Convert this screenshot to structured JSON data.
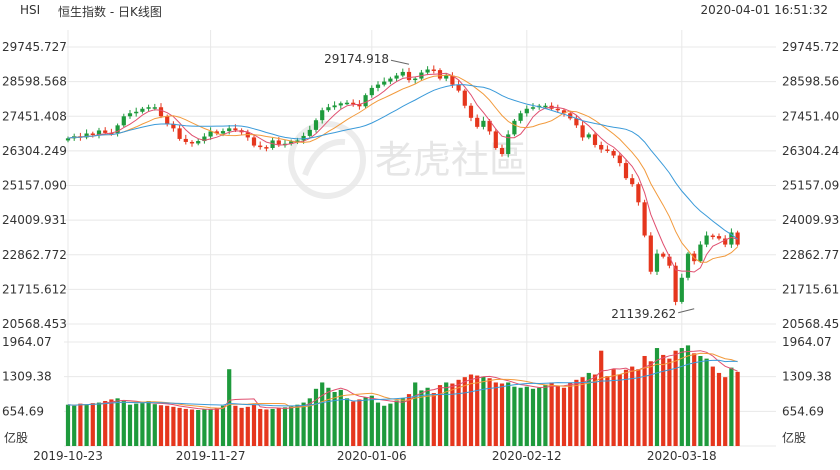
{
  "header": {
    "symbol": "HSI",
    "chart_title": "恒生指数 - 日K线图",
    "datetime": "2020-04-01 16:51:32"
  },
  "watermark": {
    "text": "老虎社區",
    "icon": "tiger-logo-icon"
  },
  "colors": {
    "up": "#1e9a3c",
    "down": "#e5361d",
    "ma5": "#e05070",
    "ma10": "#f29a3c",
    "ma20": "#3a9ad9",
    "grid": "#e8e8e8",
    "text": "#333333"
  },
  "chart_data": [
    {
      "type": "candlestick",
      "title": "恒生指数 - 日K线图",
      "price_ticks": [
        "29745.727",
        "28598.568",
        "27451.408",
        "26304.249",
        "25157.090",
        "24009.931",
        "22862.772",
        "21715.612",
        "20568.453"
      ],
      "ylim": [
        20568.453,
        29745.727
      ],
      "x_labels": [
        {
          "label": "2019-10-23",
          "index": 0
        },
        {
          "label": "2019-11-27",
          "index": 23
        },
        {
          "label": "2020-01-06",
          "index": 49
        },
        {
          "label": "2020-02-12",
          "index": 74
        },
        {
          "label": "2020-03-18",
          "index": 99
        }
      ],
      "annotations": [
        {
          "text": "29174.918",
          "index": 55,
          "value": 29174.918,
          "type": "high"
        },
        {
          "text": "21139.262",
          "index": 101,
          "value": 21139.262,
          "type": "low"
        }
      ],
      "series_colors": {
        "ma5": "#e05070",
        "ma10": "#f29a3c",
        "ma20": "#3a9ad9"
      },
      "close": [
        26720,
        26790,
        26750,
        26880,
        26830,
        26980,
        26900,
        26890,
        27150,
        27450,
        27550,
        27600,
        27700,
        27750,
        27750,
        27450,
        27200,
        27050,
        26700,
        26600,
        26550,
        26630,
        26780,
        26950,
        26880,
        26960,
        27050,
        26990,
        26920,
        26750,
        26480,
        26430,
        26400,
        26650,
        26520,
        26540,
        26620,
        26650,
        26800,
        27000,
        27320,
        27650,
        27750,
        27810,
        27880,
        27900,
        27850,
        27780,
        28150,
        28390,
        28500,
        28600,
        28700,
        28800,
        28920,
        28650,
        28700,
        28900,
        29000,
        28980,
        28700,
        28800,
        28500,
        28300,
        27800,
        27400,
        27100,
        27300,
        26950,
        26400,
        26200,
        26850,
        27300,
        27550,
        27700,
        27750,
        27800,
        27800,
        27700,
        27650,
        27550,
        27380,
        27150,
        26750,
        26850,
        26500,
        26350,
        26300,
        26150,
        25900,
        25400,
        25200,
        24600,
        23500,
        22300,
        22900,
        22800,
        22500,
        21300,
        22100,
        22900,
        22650,
        23200,
        23500,
        23480,
        23400,
        23200,
        23600,
        23200
      ],
      "open": [
        26650,
        26720,
        26790,
        26750,
        26880,
        26830,
        26980,
        26900,
        26890,
        27150,
        27450,
        27550,
        27600,
        27700,
        27750,
        27750,
        27450,
        27200,
        27050,
        26700,
        26600,
        26550,
        26630,
        26780,
        26950,
        26880,
        26960,
        27050,
        26990,
        26920,
        26750,
        26480,
        26430,
        26400,
        26650,
        26520,
        26540,
        26620,
        26650,
        26800,
        27000,
        27320,
        27650,
        27750,
        27810,
        27880,
        27900,
        27850,
        27780,
        28150,
        28390,
        28500,
        28600,
        28700,
        28800,
        28920,
        28650,
        28700,
        28900,
        29000,
        28980,
        28700,
        28800,
        28500,
        28300,
        27800,
        27400,
        27100,
        27300,
        26950,
        26400,
        26200,
        26850,
        27300,
        27550,
        27700,
        27750,
        27800,
        27800,
        27700,
        27650,
        27550,
        27380,
        27150,
        26750,
        26850,
        26500,
        26350,
        26300,
        26150,
        25900,
        25400,
        25200,
        24600,
        23500,
        22300,
        22900,
        22800,
        22500,
        21300,
        22100,
        22900,
        22650,
        23200,
        23500,
        23480,
        23400,
        23200,
        23600
      ],
      "volume": [
        780,
        760,
        800,
        790,
        810,
        820,
        850,
        880,
        900,
        860,
        780,
        800,
        810,
        850,
        790,
        770,
        760,
        740,
        720,
        700,
        690,
        680,
        690,
        700,
        720,
        760,
        1450,
        760,
        720,
        740,
        780,
        700,
        690,
        700,
        720,
        730,
        760,
        780,
        820,
        900,
        1080,
        1200,
        1100,
        1020,
        1060,
        900,
        840,
        880,
        920,
        950,
        820,
        760,
        800,
        860,
        900,
        980,
        1200,
        1050,
        1100,
        1000,
        1150,
        1200,
        1180,
        1250,
        1300,
        1350,
        1330,
        1310,
        1280,
        1200,
        1180,
        1200,
        1120,
        1100,
        1120,
        1080,
        1100,
        1150,
        1200,
        1130,
        1100,
        1200,
        1250,
        1300,
        1380,
        1350,
        1800,
        1320,
        1450,
        1350,
        1440,
        1500,
        1450,
        1700,
        1600,
        1850,
        1720,
        1650,
        1800,
        1850,
        1900,
        1750,
        1700,
        1650,
        1500,
        1380,
        1300,
        1480,
        1400
      ],
      "volume_ticks": [
        "1964.07",
        "1309.38",
        "654.69"
      ],
      "volume_unit": "亿股",
      "volume_max": 1964.07
    }
  ]
}
